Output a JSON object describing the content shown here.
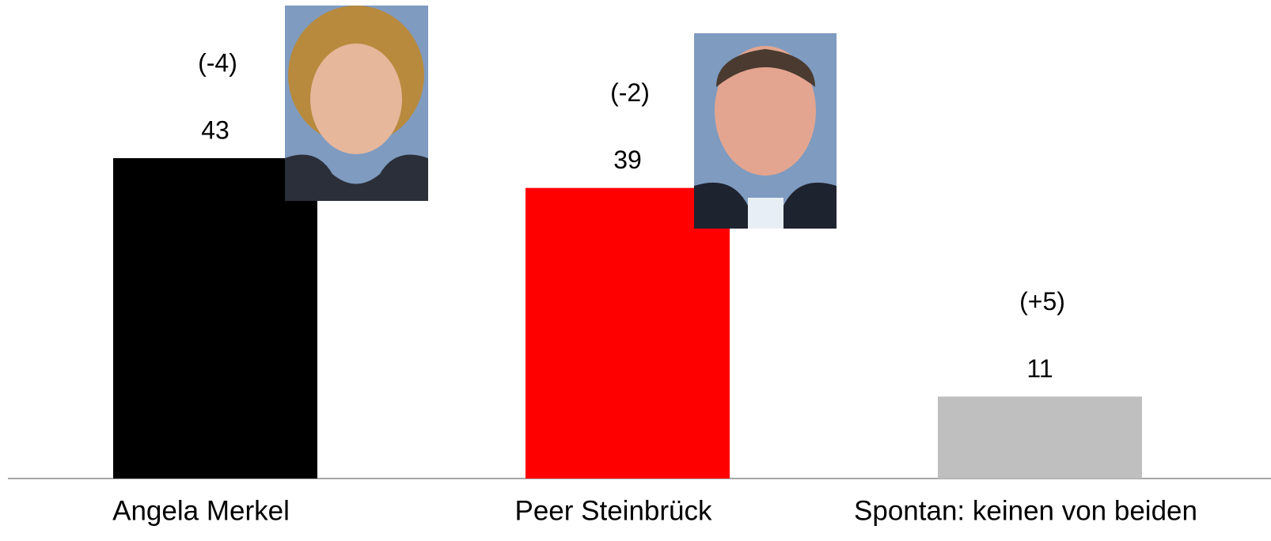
{
  "chart_data": {
    "type": "bar",
    "categories": [
      "Angela Merkel",
      "Peer Steinbrück",
      "Spontan: keinen von beiden"
    ],
    "values": [
      43,
      39,
      11
    ],
    "colors": [
      "#000000",
      "#ff0000",
      "#bfbfbf"
    ],
    "change_labels": [
      "(-4)",
      "(-2)",
      "(+5)"
    ]
  }
}
